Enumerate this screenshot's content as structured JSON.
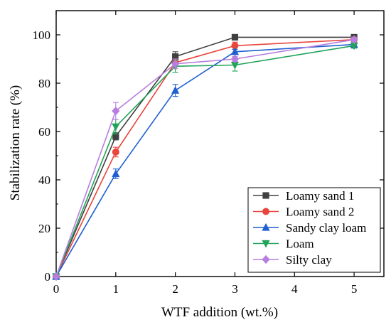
{
  "chart_data": {
    "type": "line",
    "title": "",
    "xlabel": "WTF addition (wt.%)",
    "ylabel": "Stabilization rate (%)",
    "xlim": [
      0,
      5.5
    ],
    "ylim": [
      0,
      110
    ],
    "xticks": [
      "0",
      "1",
      "2",
      "3",
      "4",
      "5"
    ],
    "yticks": [
      "0",
      "20",
      "40",
      "60",
      "80",
      "100"
    ],
    "x": [
      0,
      1,
      2,
      3,
      5
    ],
    "grid": false,
    "legend_position": "lower-right",
    "series": [
      {
        "name": "Loamy sand 1",
        "color": "#404040",
        "marker": "square",
        "values": [
          0,
          58,
          91,
          99,
          99
        ],
        "errors": [
          0,
          1.5,
          2,
          0.5,
          0.5
        ]
      },
      {
        "name": "Loamy sand 2",
        "color": "#e8453c",
        "marker": "circle",
        "values": [
          0,
          51.5,
          88.5,
          95.5,
          98
        ],
        "errors": [
          0,
          2,
          1.5,
          1.5,
          1
        ]
      },
      {
        "name": "Sandy clay loam",
        "color": "#1f5fcf",
        "marker": "triangle-up",
        "values": [
          0,
          42.5,
          77,
          93,
          96
        ],
        "errors": [
          0,
          2,
          2.5,
          1,
          1.5
        ]
      },
      {
        "name": "Loam",
        "color": "#22a35a",
        "marker": "triangle-down",
        "values": [
          0,
          62,
          87,
          87.5,
          95.5
        ],
        "errors": [
          0,
          3,
          2.5,
          2.5,
          1
        ]
      },
      {
        "name": "Silty clay",
        "color": "#b77ee0",
        "marker": "diamond",
        "values": [
          0,
          68.5,
          88,
          90,
          98
        ],
        "errors": [
          0,
          3.5,
          2,
          1,
          1
        ]
      }
    ]
  }
}
